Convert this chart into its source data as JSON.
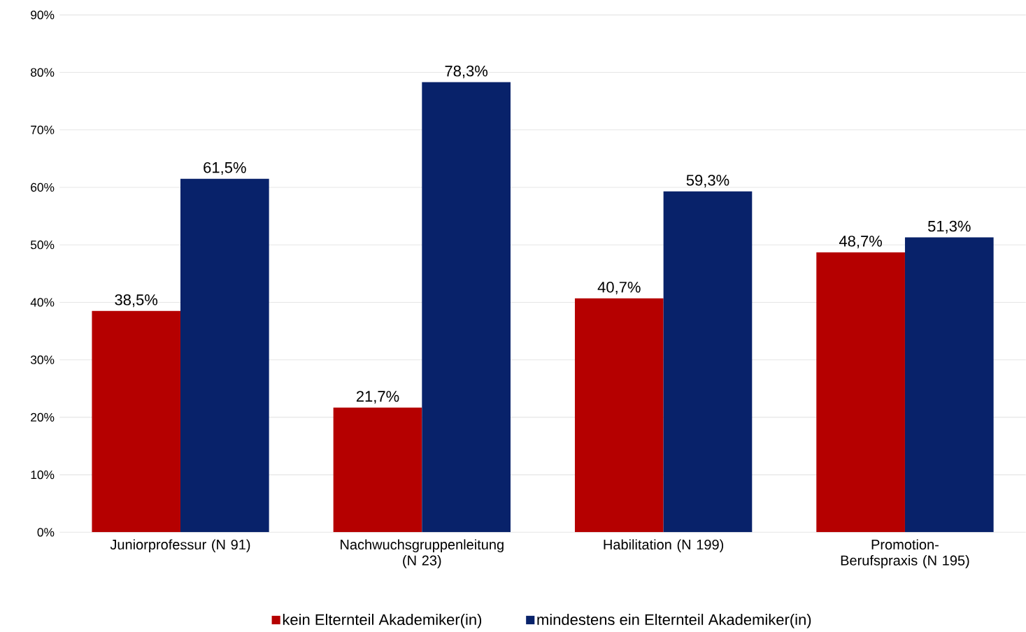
{
  "chart_data": {
    "type": "bar",
    "categories": [
      "Juniorprofessur (N 91)",
      "Nachwuchsgruppenleitung (N 23)",
      "Habilitation (N 199)",
      "Promotion-Berufspraxis (N 195)"
    ],
    "series": [
      {
        "name": "kein Elternteil Akademiker(in)",
        "color": "#b50000",
        "values": [
          38.5,
          21.7,
          40.7,
          48.7
        ],
        "value_labels": [
          "38,5%",
          "21,7%",
          "40,7%",
          "48,7%"
        ]
      },
      {
        "name": "mindestens ein Elternteil Akademiker(in)",
        "color": "#08226a",
        "values": [
          61.5,
          78.3,
          59.3,
          51.3
        ],
        "value_labels": [
          "61,5%",
          "78,3%",
          "59,3%",
          "51,3%"
        ]
      }
    ],
    "ylim": [
      0,
      90
    ],
    "yticks": [
      {
        "value": 0,
        "label": "0%"
      },
      {
        "value": 10,
        "label": "10%"
      },
      {
        "value": 20,
        "label": "20%"
      },
      {
        "value": 30,
        "label": "30%"
      },
      {
        "value": 40,
        "label": "40%"
      },
      {
        "value": 50,
        "label": "50%"
      },
      {
        "value": 60,
        "label": "60%"
      },
      {
        "value": 70,
        "label": "70%"
      },
      {
        "value": 80,
        "label": "80%"
      },
      {
        "value": 90,
        "label": "90%"
      }
    ],
    "grid": "y",
    "legend": "bottom"
  }
}
